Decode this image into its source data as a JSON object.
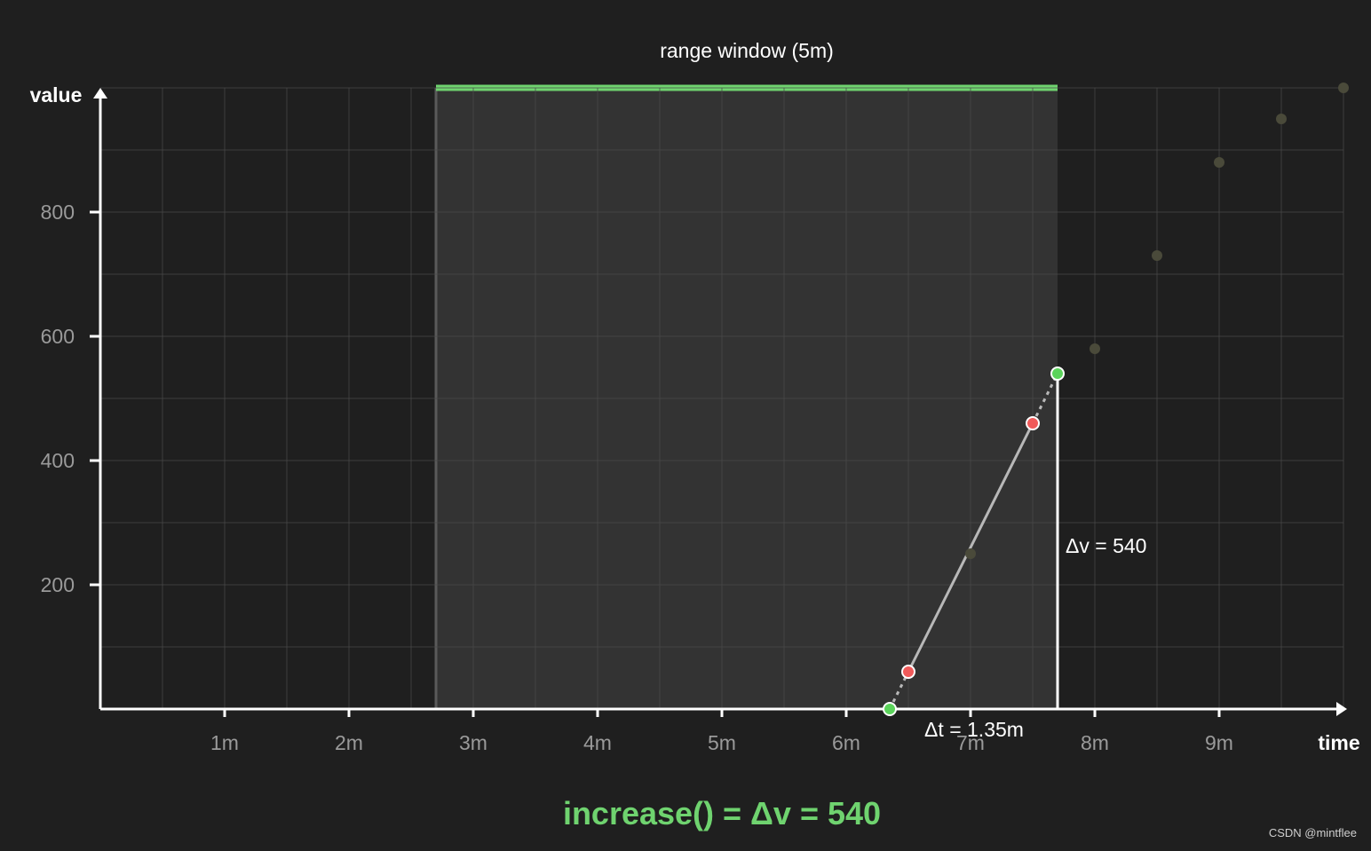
{
  "chart_data": {
    "type": "scatter",
    "title": "range window (5m)",
    "xlabel": "time",
    "ylabel": "value",
    "x_unit": "m",
    "xlim": [
      0,
      10
    ],
    "ylim": [
      0,
      1000
    ],
    "x_ticks": [
      {
        "value": 1,
        "label": "1m"
      },
      {
        "value": 2,
        "label": "2m"
      },
      {
        "value": 3,
        "label": "3m"
      },
      {
        "value": 4,
        "label": "4m"
      },
      {
        "value": 5,
        "label": "5m"
      },
      {
        "value": 6,
        "label": "6m"
      },
      {
        "value": 7,
        "label": "7m"
      },
      {
        "value": 8,
        "label": "8m"
      },
      {
        "value": 9,
        "label": "9m"
      }
    ],
    "y_ticks": [
      {
        "value": 200,
        "label": "200"
      },
      {
        "value": 400,
        "label": "400"
      },
      {
        "value": 600,
        "label": "600"
      },
      {
        "value": 800,
        "label": "800"
      }
    ],
    "grid": true,
    "range_window": {
      "start": 2.7,
      "end": 7.7,
      "label": "range window (5m)"
    },
    "samples_outside": [
      {
        "x": 7,
        "y": 250
      },
      {
        "x": 8,
        "y": 580
      },
      {
        "x": 8.5,
        "y": 730
      },
      {
        "x": 9,
        "y": 880
      },
      {
        "x": 9.5,
        "y": 950
      },
      {
        "x": 10,
        "y": 1000
      }
    ],
    "samples_in_window": [
      {
        "x": 6.5,
        "y": 60
      },
      {
        "x": 7.5,
        "y": 460
      }
    ],
    "extrapolated_points": [
      {
        "x": 6.35,
        "y": 0
      },
      {
        "x": 7.7,
        "y": 540
      }
    ],
    "annotations": {
      "delta_v": "Δv = 540",
      "delta_t": "Δt = 1.35m"
    },
    "result": "increase() = Δv = 540",
    "colors": {
      "background": "#1f1f1f",
      "window_fill": "#333333",
      "window_bar": "#6fd36f",
      "grid": "#4a4a4a",
      "axis": "#ffffff",
      "sample_in_window": "#f05a5a",
      "extrapolated": "#5bd35b",
      "sample_outside": "#4a4a3a",
      "result_text": "#6fd36f"
    }
  },
  "watermark": "CSDN @mintflee"
}
